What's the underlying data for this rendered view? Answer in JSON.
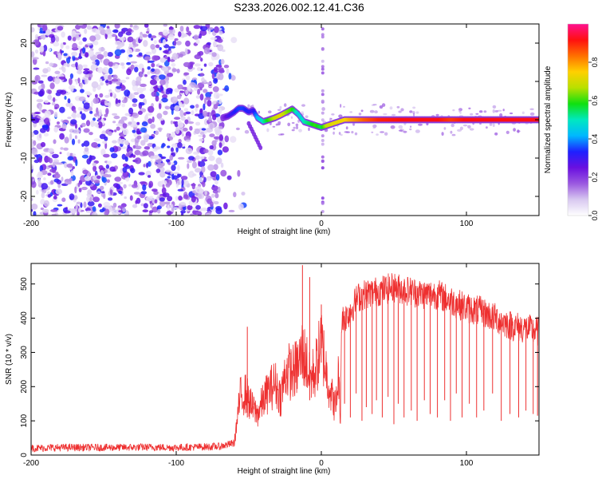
{
  "title": "S233.2026.002.12.41.C36",
  "chart_data": [
    {
      "type": "heatmap",
      "xlabel": "Height of straight line (km)",
      "ylabel": "Frequency (Hz)",
      "xlim": [
        -200,
        150
      ],
      "ylim": [
        -25,
        25
      ],
      "xticks": [
        -200,
        -100,
        0,
        100
      ],
      "yticks": [
        20,
        10,
        0,
        -10,
        -20
      ],
      "xtick_labels": [
        "-200",
        "-100",
        "0",
        "100"
      ],
      "ytick_labels": [
        "20",
        "10",
        "0",
        "-10",
        "-20"
      ],
      "colorbar": {
        "label": "Normalized spectral amplitude",
        "range": [
          0.0,
          1.0
        ],
        "ticks": [
          0.0,
          0.2,
          0.4,
          0.6,
          0.8
        ],
        "tick_labels": [
          "0.0",
          "0.2",
          "0.4",
          "0.6",
          "0.8"
        ],
        "colors": [
          "#ffffff",
          "#d8c8f0",
          "#9b59e0",
          "#6a10e0",
          "#1e20ff",
          "#00b8ff",
          "#00e8c0",
          "#10e010",
          "#b8e000",
          "#ffd000",
          "#ff7000",
          "#ff1010",
          "#ff1090"
        ]
      },
      "noise_region": {
        "x_from": -200,
        "x_to": -68,
        "amplitude": 0.2
      },
      "ridge": {
        "x": [
          -68,
          -64,
          -60,
          -57,
          -54,
          -50,
          -47,
          -44,
          -40,
          -36,
          -32,
          -28,
          -24,
          -20,
          -16,
          -12,
          -8,
          -4,
          0,
          4,
          8,
          12,
          16,
          20,
          30,
          40,
          60,
          80,
          90,
          100,
          120,
          150
        ],
        "freq": [
          0.5,
          1.0,
          2.0,
          3.0,
          3.0,
          2.0,
          2.5,
          0.5,
          -0.5,
          0.0,
          0.5,
          1.2,
          2.0,
          2.8,
          1.5,
          -0.5,
          -1.0,
          -1.5,
          -2.0,
          -1.5,
          -1.0,
          -0.5,
          0.0,
          0.0,
          0.0,
          0.0,
          0.0,
          0.0,
          0.0,
          0.0,
          0.0,
          0.0
        ],
        "amplitude": [
          0.2,
          0.28,
          0.32,
          0.35,
          0.35,
          0.32,
          0.3,
          0.42,
          0.5,
          0.6,
          0.68,
          0.72,
          0.65,
          0.6,
          0.45,
          0.5,
          0.55,
          0.6,
          0.55,
          0.68,
          0.72,
          0.72,
          0.74,
          0.78,
          0.85,
          0.9,
          0.92,
          0.92,
          0.88,
          0.92,
          0.92,
          0.92
        ]
      }
    },
    {
      "type": "line",
      "xlabel": "Height of straight line (km)",
      "ylabel": "SNR (10 * v/v)",
      "xlim": [
        -200,
        150
      ],
      "ylim": [
        0,
        560
      ],
      "xticks": [
        -200,
        -100,
        0,
        100
      ],
      "yticks": [
        0,
        100,
        200,
        300,
        400,
        500
      ],
      "xtick_labels": [
        "-200",
        "-100",
        "0",
        "100"
      ],
      "ytick_labels": [
        "0",
        "100",
        "200",
        "300",
        "400",
        "500"
      ],
      "color": "#ee3030",
      "series": [
        {
          "name": "SNR",
          "x": [
            -200,
            -180,
            -160,
            -140,
            -120,
            -100,
            -80,
            -70,
            -60,
            -56,
            -52,
            -48,
            -44,
            -40,
            -36,
            -32,
            -28,
            -24,
            -20,
            -16,
            -13,
            -10,
            -8,
            -4,
            0,
            4,
            8,
            10,
            12,
            13,
            14,
            16,
            18,
            20,
            25,
            30,
            40,
            50,
            60,
            70,
            80,
            90,
            100,
            110,
            120,
            130,
            140,
            150
          ],
          "y": [
            20,
            22,
            22,
            22,
            23,
            22,
            24,
            25,
            35,
            170,
            180,
            140,
            120,
            160,
            190,
            210,
            170,
            250,
            240,
            260,
            300,
            270,
            220,
            250,
            330,
            230,
            160,
            140,
            250,
            80,
            400,
            400,
            410,
            420,
            460,
            470,
            480,
            490,
            480,
            470,
            470,
            450,
            430,
            420,
            400,
            380,
            370,
            360
          ]
        }
      ],
      "dropouts": [
        {
          "x": 16,
          "y": 150
        },
        {
          "x": 20,
          "y": 110
        },
        {
          "x": 24,
          "y": 180
        },
        {
          "x": 28,
          "y": 100
        },
        {
          "x": 31,
          "y": 140
        },
        {
          "x": 35,
          "y": 120
        },
        {
          "x": 38,
          "y": 160
        },
        {
          "x": 42,
          "y": 110
        },
        {
          "x": 46,
          "y": 170
        },
        {
          "x": 50,
          "y": 90
        },
        {
          "x": 53,
          "y": 150
        },
        {
          "x": 57,
          "y": 110
        },
        {
          "x": 62,
          "y": 130
        },
        {
          "x": 66,
          "y": 100
        },
        {
          "x": 71,
          "y": 160
        },
        {
          "x": 75,
          "y": 120
        },
        {
          "x": 80,
          "y": 110
        },
        {
          "x": 85,
          "y": 160
        },
        {
          "x": 89,
          "y": 100
        },
        {
          "x": 93,
          "y": 180
        },
        {
          "x": 97,
          "y": 110
        },
        {
          "x": 102,
          "y": 150
        },
        {
          "x": 107,
          "y": 110
        },
        {
          "x": 112,
          "y": 130
        },
        {
          "x": 118,
          "y": 180
        },
        {
          "x": 124,
          "y": 100
        },
        {
          "x": 130,
          "y": 120
        },
        {
          "x": 136,
          "y": 110
        },
        {
          "x": 141,
          "y": 130
        },
        {
          "x": 146,
          "y": 120
        },
        {
          "x": 149,
          "y": 115
        }
      ],
      "spikes": [
        {
          "x": -13,
          "y": 555
        },
        {
          "x": -8,
          "y": 520
        },
        {
          "x": -51,
          "y": 375
        },
        {
          "x": 0,
          "y": 440
        }
      ]
    }
  ]
}
